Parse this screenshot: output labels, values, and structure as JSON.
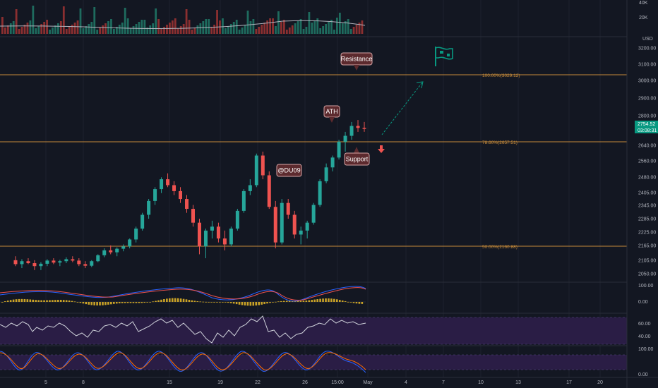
{
  "colors": {
    "background": "#131722",
    "up": "#26a69a",
    "down": "#ef5350",
    "fib": "#c58a3a",
    "accent_green": "#089981",
    "callout_bg": "#5c2a2e",
    "callout_border": "#d9a6a6",
    "rsi_band": "#3b1f5e",
    "macd_line": "#2962ff",
    "signal_line": "#ff6d00",
    "hist": "#c9a227"
  },
  "volume_axis": {
    "labels": [
      "40K",
      "20K"
    ]
  },
  "price_axis": {
    "currency": "USD",
    "labels": [
      "3200.00",
      "3100.00",
      "3000.00",
      "2900.00",
      "2800.00",
      "2640.00",
      "2560.00",
      "2480.00",
      "2405.00",
      "2345.00",
      "2285.00",
      "2225.00",
      "2165.00",
      "2105.00",
      "2050.00"
    ]
  },
  "current_price": {
    "value": "2754.52",
    "countdown": "03:08:31"
  },
  "fib_levels": [
    {
      "label": "100.00%(3029.12)"
    },
    {
      "label": "78.60%(2657.51)"
    },
    {
      "label": "50.00%(2160.88)"
    }
  ],
  "callouts": {
    "resistance": "Resistance",
    "ath": "ATH",
    "support": "Support",
    "watermark": "@DU09"
  },
  "macd_axis": {
    "labels": [
      "100.00",
      "0.00"
    ]
  },
  "rsi_axis": {
    "labels": [
      "60.00",
      "40.00"
    ]
  },
  "stoch_axis": {
    "labels": [
      "100.00",
      "0.00"
    ]
  },
  "time_axis": {
    "labels": [
      "5",
      "8",
      "15",
      "19",
      "22",
      "26",
      "15:00",
      "May",
      "4",
      "7",
      "10",
      "13",
      "17",
      "20"
    ]
  },
  "chart_data": {
    "type": "candlestick",
    "ohlc": [
      [
        2090,
        2110,
        2060,
        2070
      ],
      [
        2070,
        2095,
        2050,
        2085
      ],
      [
        2085,
        2100,
        2070,
        2075
      ],
      [
        2075,
        2090,
        2040,
        2060
      ],
      [
        2060,
        2080,
        2040,
        2072
      ],
      [
        2072,
        2095,
        2060,
        2088
      ],
      [
        2088,
        2100,
        2070,
        2078
      ],
      [
        2078,
        2092,
        2060,
        2085
      ],
      [
        2085,
        2105,
        2075,
        2095
      ],
      [
        2095,
        2110,
        2080,
        2088
      ],
      [
        2088,
        2100,
        2060,
        2070
      ],
      [
        2070,
        2085,
        2050,
        2062
      ],
      [
        2062,
        2090,
        2055,
        2085
      ],
      [
        2085,
        2120,
        2080,
        2115
      ],
      [
        2115,
        2150,
        2105,
        2140
      ],
      [
        2140,
        2165,
        2120,
        2130
      ],
      [
        2130,
        2155,
        2110,
        2148
      ],
      [
        2148,
        2170,
        2135,
        2160
      ],
      [
        2160,
        2200,
        2150,
        2195
      ],
      [
        2195,
        2260,
        2180,
        2250
      ],
      [
        2250,
        2330,
        2240,
        2320
      ],
      [
        2320,
        2400,
        2300,
        2390
      ],
      [
        2390,
        2460,
        2370,
        2450
      ],
      [
        2450,
        2510,
        2430,
        2500
      ],
      [
        2500,
        2530,
        2460,
        2470
      ],
      [
        2470,
        2490,
        2420,
        2440
      ],
      [
        2440,
        2460,
        2380,
        2400
      ],
      [
        2400,
        2420,
        2330,
        2350
      ],
      [
        2350,
        2370,
        2260,
        2280
      ],
      [
        2280,
        2300,
        2120,
        2160
      ],
      [
        2160,
        2250,
        2100,
        2240
      ],
      [
        2240,
        2290,
        2200,
        2260
      ],
      [
        2260,
        2280,
        2180,
        2200
      ],
      [
        2200,
        2240,
        2140,
        2170
      ],
      [
        2170,
        2260,
        2160,
        2250
      ],
      [
        2250,
        2350,
        2240,
        2340
      ],
      [
        2340,
        2450,
        2330,
        2440
      ],
      [
        2440,
        2500,
        2420,
        2470
      ],
      [
        2470,
        2630,
        2460,
        2620
      ],
      [
        2620,
        2640,
        2500,
        2520
      ],
      [
        2520,
        2540,
        2350,
        2360
      ],
      [
        2360,
        2390,
        2150,
        2180
      ],
      [
        2180,
        2400,
        2170,
        2380
      ],
      [
        2380,
        2400,
        2300,
        2320
      ],
      [
        2320,
        2340,
        2200,
        2220
      ],
      [
        2220,
        2260,
        2170,
        2240
      ],
      [
        2240,
        2290,
        2200,
        2280
      ],
      [
        2280,
        2380,
        2270,
        2370
      ],
      [
        2370,
        2500,
        2360,
        2490
      ],
      [
        2490,
        2580,
        2480,
        2560
      ],
      [
        2560,
        2620,
        2540,
        2610
      ],
      [
        2610,
        2700,
        2600,
        2690
      ],
      [
        2690,
        2740,
        2640,
        2720
      ],
      [
        2720,
        2790,
        2700,
        2770
      ],
      [
        2770,
        2800,
        2740,
        2760
      ],
      [
        2760,
        2790,
        2740,
        2755
      ]
    ],
    "ylim": [
      2020,
      3260
    ]
  }
}
